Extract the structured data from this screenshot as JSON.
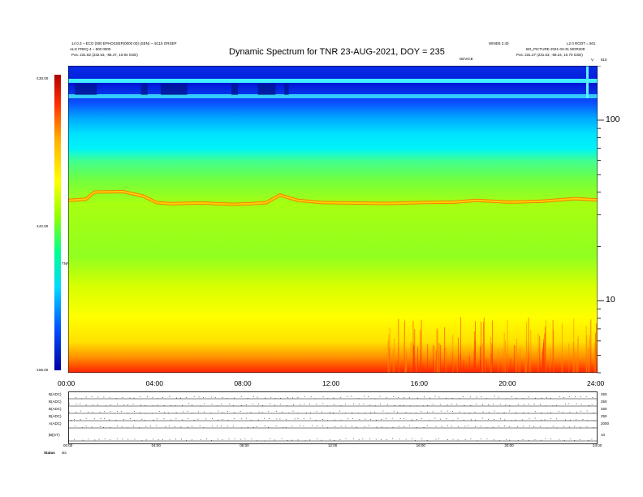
{
  "header": {
    "title": "Dynamic Spectrum for TNR 23-AUG-2021, DOY = 235",
    "left_meta_1": "14 0.3 ~ ECO (000 EPHOSSEP(0000 00) (SEN) ~ 4/115 ORSEP",
    "left_meta_2": "ALG FREQ 4 ~ 500 0000",
    "left_pos": "Pos:   231.82 (232.53, -86.47, 10.94 GSE)",
    "right_meta_1": "WIND5 2.40",
    "right_meta_2": "L2 0 ROOT = 501",
    "right_meta_3": "BG_PICTURE 2021-03-31  MOR209",
    "right_pos": "Pos:   231.27 (231.53, -68.24, 10.70 GSE)",
    "device_label": "DEVICE",
    "end_mark": "V",
    "end_mark_2": "810"
  },
  "colorbar": {
    "top_label": "-130.00",
    "mid_label": "-142.50",
    "bottom_label": "-155.00",
    "unit_label": "TNR"
  },
  "freq_axis": {
    "labels": [
      "100",
      "10"
    ],
    "values": [
      100,
      10
    ],
    "range": [
      4,
      200
    ],
    "scale": "log"
  },
  "time_axis": {
    "labels": [
      "00:00",
      "04:00",
      "08:00",
      "12:00",
      "16:00",
      "20:00",
      "24:00"
    ]
  },
  "chart_data": {
    "type": "heatmap",
    "title": "Dynamic Spectrum for TNR 23-AUG-2021, DOY = 235",
    "x": [
      "00:00",
      "04:00",
      "08:00",
      "12:00",
      "16:00",
      "20:00",
      "24:00"
    ],
    "y_scale": "log",
    "y_ticks": [
      100,
      10
    ],
    "color_scale": {
      "min": -155.0,
      "mid": -142.5,
      "max": -130.0
    },
    "color_stops": [
      "#0000a0",
      "#0050ff",
      "#00d8ff",
      "#00ff90",
      "#90ff00",
      "#ffff00",
      "#ffb000",
      "#ff3000",
      "#b00000"
    ],
    "plasma_line": {
      "x_hours": [
        0,
        0.8,
        1.2,
        2.5,
        3.4,
        4.0,
        4.6,
        6.0,
        7.5,
        8.3,
        9.0,
        9.6,
        10.4,
        11.5,
        13.0,
        14.5,
        16.0,
        17.5,
        18.5,
        20.0,
        21.5,
        23.0,
        24.0
      ],
      "freq": [
        36.0,
        36.5,
        40.0,
        40.2,
        38.0,
        35.0,
        34.5,
        34.8,
        34.2,
        34.5,
        35.0,
        38.5,
        36.0,
        35.0,
        34.8,
        34.6,
        35.0,
        35.2,
        36.0,
        35.2,
        35.6,
        36.8,
        36.2
      ]
    }
  },
  "panels": {
    "rows": [
      {
        "label": "B(ADC)",
        "right": "250"
      },
      {
        "label": "B(ADC)",
        "right": "250"
      },
      {
        "label": "B(ADC)",
        "right": "250"
      },
      {
        "label": "B(ADC)",
        "right": "250"
      },
      {
        "label": "A(ADC)",
        "right": "2000"
      },
      {
        "label": "|B|(nT)",
        "right": "10"
      }
    ],
    "time_labels": [
      "00:00",
      "04:00",
      "08:00",
      "12:00",
      "16:00",
      "20:00",
      "24:00"
    ],
    "status_label": "Status",
    "status_value": "sts"
  }
}
